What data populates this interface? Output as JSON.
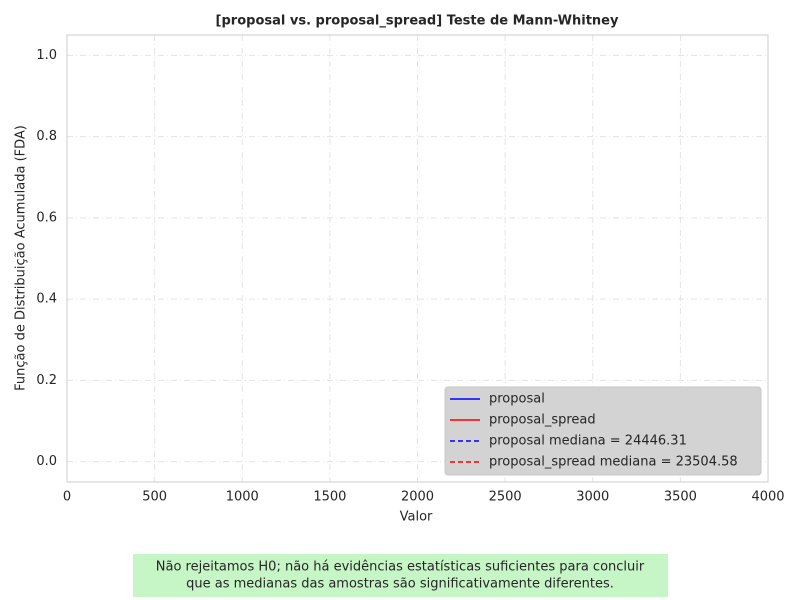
{
  "chart_data": {
    "type": "line",
    "title": "[proposal vs. proposal_spread] Teste de Mann-Whitney",
    "x_label": "Valor",
    "y_label": "Função de Distribuição Acumulada (FDA)",
    "series": [
      {
        "name": "proposal",
        "color": "#0000ff",
        "linestyle": "solid"
      },
      {
        "name": "proposal_spread",
        "color": "#ff0000",
        "linestyle": "solid"
      }
    ],
    "medians": [
      {
        "label": "proposal mediana = 24446.31",
        "value": 24446.31,
        "color": "#0000ff",
        "linestyle": "dashed"
      },
      {
        "label": "proposal_spread mediana = 23504.58",
        "value": 23504.58,
        "color": "#ff0000",
        "linestyle": "dashed"
      }
    ],
    "xlim": [
      0,
      4000
    ],
    "xticks": [
      0,
      500,
      1000,
      1500,
      2000,
      2500,
      3000,
      3500,
      4000
    ],
    "ylim": [
      -0.05,
      1.05
    ],
    "yticks": [
      {
        "value": 0,
        "label": "0.0"
      },
      0.2,
      0.4,
      0.6,
      0.8,
      {
        "value": 1,
        "label": "1.0"
      }
    ],
    "grid": true,
    "legend": "lower right",
    "annotation": [
      "Não rejeitamos H0; não há evidências estatísticas suficientes para concluir",
      "que as medianas das amostras são significativamente diferentes."
    ]
  }
}
